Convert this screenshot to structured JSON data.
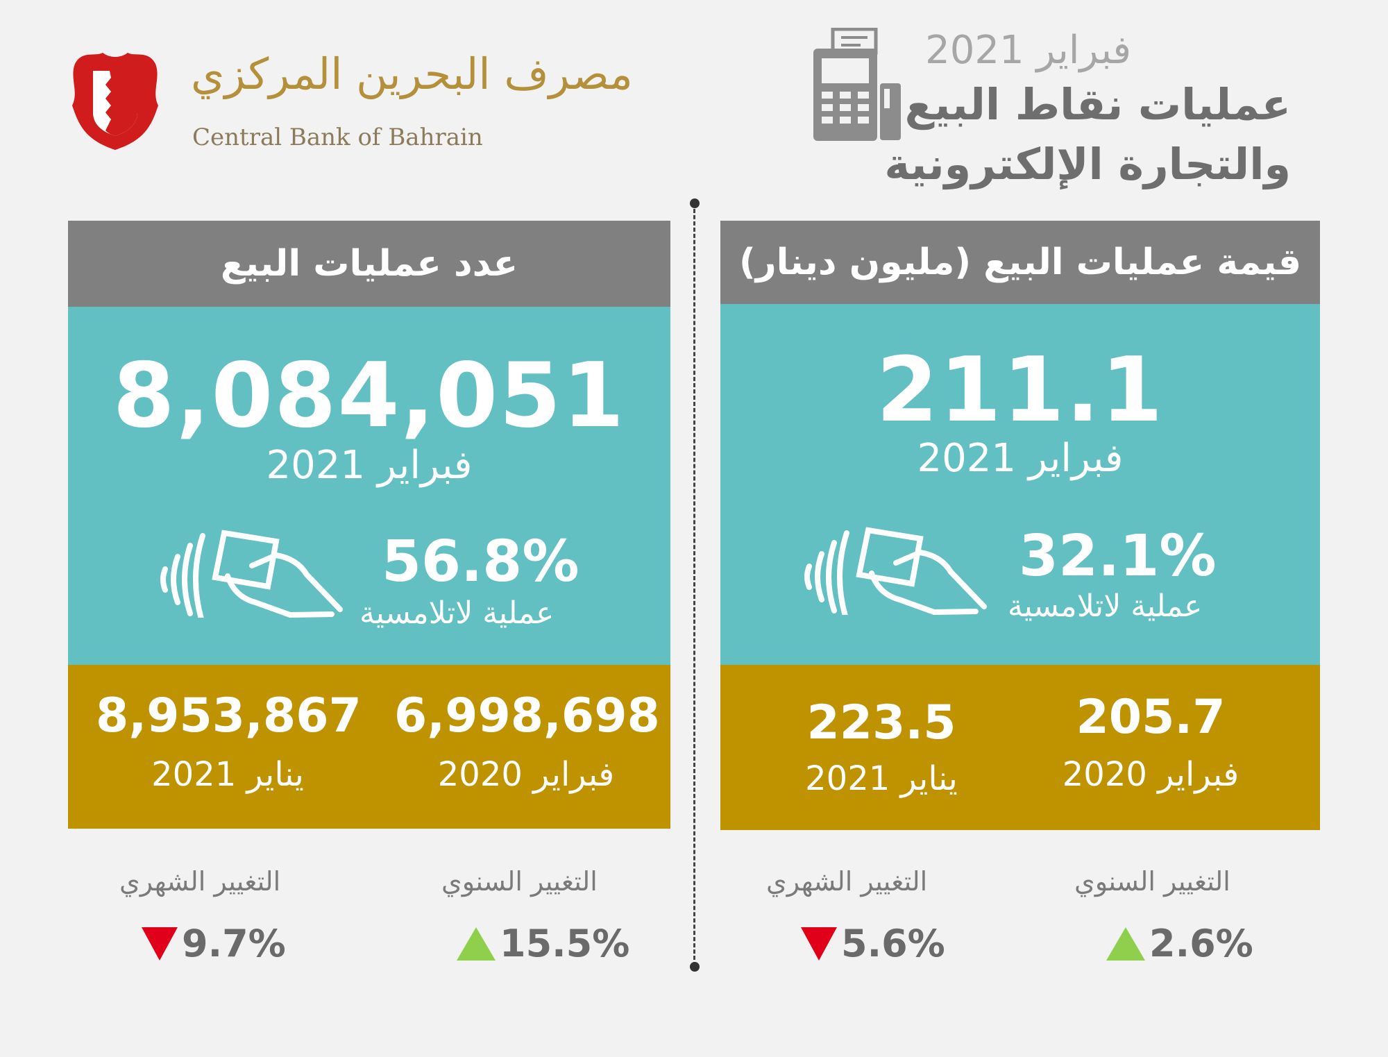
{
  "header": {
    "date": "فبراير 2021",
    "title_line1": "عمليات نقاط البيع",
    "title_line2": "والتجارة الإلكترونية",
    "icon": "pos-terminal-icon"
  },
  "logo": {
    "arabic": "مصرف البحرين المركزي",
    "english": "Central Bank of Bahrain",
    "emblem_icon": "bahrain-emblem-icon"
  },
  "count_panel": {
    "title": "عدد عمليات البيع",
    "value": "8,084,051",
    "period": "فبراير 2021",
    "contactless_pct": "56.8%",
    "contactless_label": "عملية لاتلامسية",
    "prev_year_value": "6,998,698",
    "prev_year_label": "فبراير 2020",
    "prev_month_value": "8,953,867",
    "prev_month_label": "يناير 2021",
    "yearly_change_label": "التغيير السنوي",
    "yearly_change_value": "15.5%",
    "yearly_change_direction": "up",
    "monthly_change_label": "التغيير الشهري",
    "monthly_change_value": "9.7%",
    "monthly_change_direction": "down"
  },
  "value_panel": {
    "title": "قيمة عمليات البيع (مليون دينار)",
    "value": "211.1",
    "period": "فبراير 2021",
    "contactless_pct": "32.1%",
    "contactless_label": "عملية لاتلامسية",
    "prev_year_value": "205.7",
    "prev_year_label": "فبراير 2020",
    "prev_month_value": "223.5",
    "prev_month_label": "يناير 2021",
    "yearly_change_label": "التغيير السنوي",
    "yearly_change_value": "2.6%",
    "yearly_change_direction": "up",
    "monthly_change_label": "التغيير الشهري",
    "monthly_change_value": "5.6%",
    "monthly_change_direction": "down"
  },
  "colors": {
    "background": "#f2f2f2",
    "panel_header": "#808080",
    "teal": "#62c0c3",
    "gold": "#bf9200",
    "up": "#8fcf4c",
    "down": "#e0001a"
  }
}
